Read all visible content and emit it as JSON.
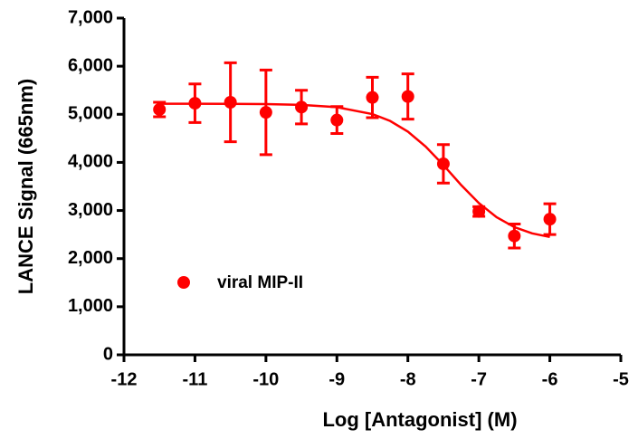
{
  "chart_data": {
    "type": "scatter",
    "x_label": "Log [Antagonist] (M)",
    "y_label": "LANCE Signal (665nm)",
    "xlim": [
      -12,
      -5
    ],
    "xticks": [
      -12,
      -11,
      -10,
      -9,
      -8,
      -7,
      -6,
      -5
    ],
    "ylim": [
      0,
      7000
    ],
    "yticks": [
      0,
      {
        "value": 1000,
        "label": "1,000"
      },
      {
        "value": 2000,
        "label": "2,000"
      },
      {
        "value": 3000,
        "label": "3,000"
      },
      {
        "value": 4000,
        "label": "4,000"
      },
      {
        "value": 5000,
        "label": "5,000"
      },
      {
        "value": 6000,
        "label": "6,000"
      },
      {
        "value": 7000,
        "label": "7,000"
      }
    ],
    "legend": "lower-left",
    "series": [
      {
        "name": "viral MIP-II",
        "color": "#ff0000",
        "x": [
          -11.5,
          -11,
          -10.5,
          -10,
          -9.5,
          -9,
          -8.5,
          -8,
          -7.5,
          -7,
          -6.5,
          -6
        ],
        "values": [
          5100,
          5230,
          5250,
          5040,
          5150,
          4880,
          5350,
          5370,
          3970,
          2980,
          2470,
          2820
        ],
        "errors": [
          150,
          400,
          820,
          880,
          350,
          280,
          420,
          470,
          400,
          100,
          250,
          320
        ],
        "fit_x": [
          -11.5,
          -11,
          -10.5,
          -10,
          -9.5,
          -9,
          -8.5,
          -8.25,
          -8,
          -7.75,
          -7.5,
          -7.25,
          -7,
          -6.75,
          -6.5,
          -6.25,
          -6
        ],
        "fit_values": [
          5220,
          5220,
          5218,
          5212,
          5196,
          5148,
          5005,
          4862,
          4640,
          4330,
          3945,
          3530,
          3155,
          2860,
          2655,
          2525,
          2450
        ]
      }
    ]
  }
}
